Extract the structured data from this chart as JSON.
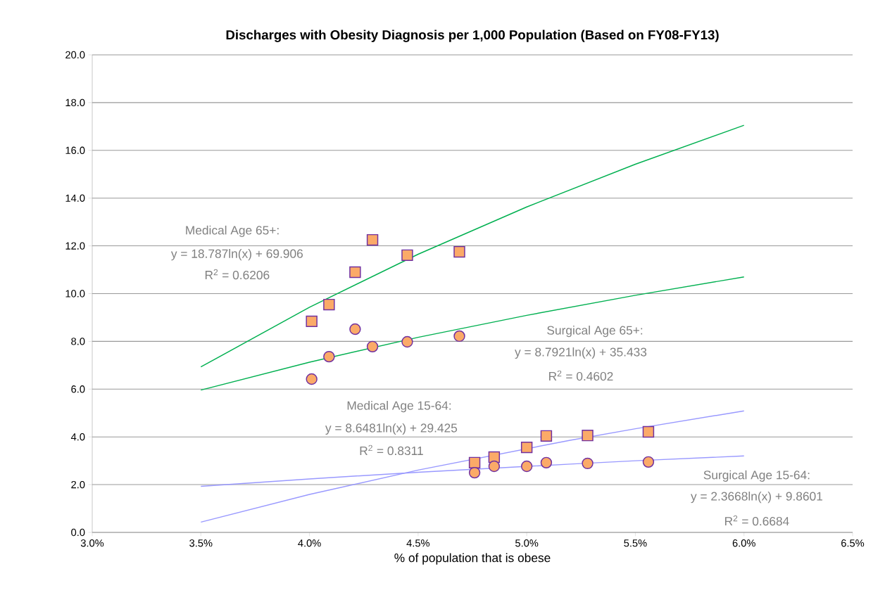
{
  "chart_data": {
    "type": "scatter",
    "title": "Discharges with Obesity Diagnosis per 1,000 Population (Based on FY08-FY13)",
    "xlabel": "% of population that is obese",
    "xlim": [
      3.0,
      6.5
    ],
    "ylim": [
      0,
      20
    ],
    "xticks": [
      {
        "value": 3.0,
        "label": "3.0%"
      },
      {
        "value": 3.5,
        "label": "3.5%"
      },
      {
        "value": 4.0,
        "label": "4.0%"
      },
      {
        "value": 4.5,
        "label": "4.5%"
      },
      {
        "value": 5.0,
        "label": "5.0%"
      },
      {
        "value": 5.5,
        "label": "5.5%"
      },
      {
        "value": 6.0,
        "label": "6.0%"
      },
      {
        "value": 6.5,
        "label": "6.5%"
      }
    ],
    "yticks": [
      {
        "value": 0,
        "label": "0.0"
      },
      {
        "value": 2,
        "label": "2.0"
      },
      {
        "value": 4,
        "label": "4.0"
      },
      {
        "value": 6,
        "label": "6.0"
      },
      {
        "value": 8,
        "label": "8.0"
      },
      {
        "value": 10,
        "label": "10.0"
      },
      {
        "value": 12,
        "label": "12.0"
      },
      {
        "value": 14,
        "label": "14.0"
      },
      {
        "value": 16,
        "label": "16.0"
      },
      {
        "value": 18,
        "label": "18.0"
      },
      {
        "value": 20,
        "label": "20.0"
      }
    ],
    "grid": "y",
    "series": [
      {
        "marker": "square",
        "color": "#fbaa68",
        "x": [
          4.01,
          4.09,
          4.21,
          4.29,
          4.45,
          4.69
        ],
        "values": [
          8.84,
          9.54,
          10.9,
          12.25,
          11.61,
          11.75
        ]
      },
      {
        "marker": "circle",
        "color": "#fbaa68",
        "x": [
          4.01,
          4.09,
          4.21,
          4.29,
          4.45,
          4.69
        ],
        "values": [
          6.42,
          7.36,
          8.51,
          7.78,
          7.98,
          8.22
        ]
      },
      {
        "marker": "square",
        "color": "#fbaa68",
        "x": [
          4.76,
          4.85,
          5.0,
          5.09,
          5.28,
          5.56
        ],
        "values": [
          2.92,
          3.15,
          3.56,
          4.04,
          4.06,
          4.21
        ]
      },
      {
        "marker": "circle",
        "color": "#fbaa68",
        "x": [
          4.76,
          4.85,
          5.0,
          5.09,
          5.28,
          5.56
        ],
        "values": [
          2.5,
          2.77,
          2.77,
          2.92,
          2.89,
          2.95
        ]
      },
      {
        "type": "line",
        "marker": "none",
        "color": "#00b050",
        "x": [
          3.5,
          4.0,
          4.5,
          5.0,
          5.5,
          6.0
        ],
        "values": [
          6.93,
          9.43,
          11.65,
          13.63,
          15.42,
          17.05
        ]
      },
      {
        "type": "line",
        "marker": "none",
        "color": "#00b050",
        "x": [
          3.5,
          4.0,
          4.5,
          5.0,
          5.5,
          6.0
        ],
        "values": [
          5.96,
          7.13,
          8.17,
          9.09,
          9.93,
          10.7
        ]
      },
      {
        "type": "line",
        "marker": "none",
        "color": "#9999ff",
        "x": [
          3.5,
          4.0,
          4.5,
          5.2,
          5.5,
          6.0
        ],
        "values": [
          0.43,
          1.59,
          2.61,
          3.86,
          4.34,
          5.09
        ]
      },
      {
        "type": "line",
        "marker": "none",
        "color": "#9999ff",
        "x": [
          3.5,
          4.0,
          4.5,
          5.2,
          5.5,
          6.0
        ],
        "values": [
          1.93,
          2.24,
          2.52,
          2.86,
          3.0,
          3.2
        ]
      }
    ],
    "annotations": [
      "Medical Age 65+:",
      "y = 18.787ln(x) + 69.906",
      "R$^{2}$ = 0.6206",
      "Surgical Age 65+:",
      "y = 8.7921ln(x) + 35.433",
      "R$^{2}$ = 0.4602",
      "Medical Age 15-64:",
      "y = 8.6481ln(x) + 29.425",
      "R$^{2}$ = 0.8311",
      "Surgical Age 15-64:",
      "y = 2.3668ln(x) + 9.8601",
      "R$^{2}$ = 0.6684"
    ]
  }
}
